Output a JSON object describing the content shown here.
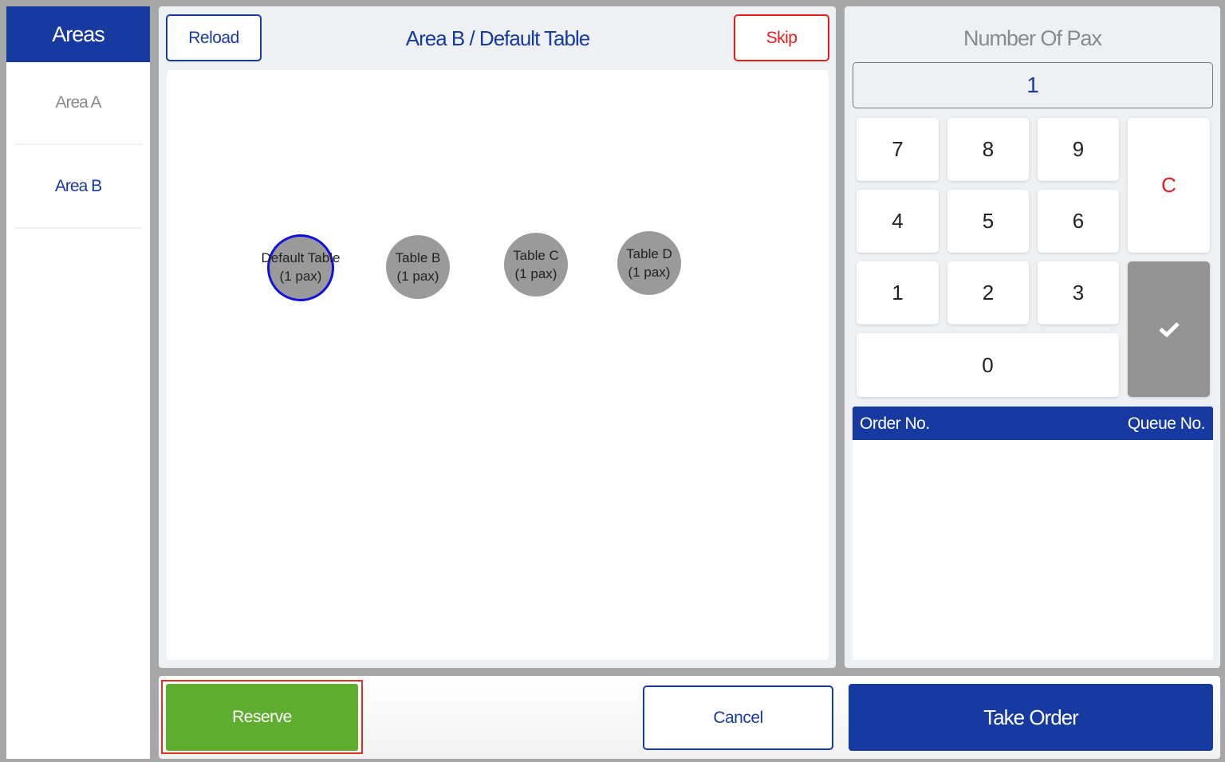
{
  "sidebar": {
    "title": "Areas",
    "items": [
      {
        "label": "Area A",
        "selected": false
      },
      {
        "label": "Area B",
        "selected": true
      }
    ]
  },
  "header": {
    "reload_label": "Reload",
    "title": "Area B / Default Table",
    "skip_label": "Skip"
  },
  "tables": [
    {
      "name": "Default Table",
      "pax": "(1 pax)",
      "selected": true
    },
    {
      "name": "Table B",
      "pax": "(1 pax)",
      "selected": false
    },
    {
      "name": "Table C",
      "pax": "(1 pax)",
      "selected": false
    },
    {
      "name": "Table D",
      "pax": "(1 pax)",
      "selected": false
    }
  ],
  "pax": {
    "title": "Number Of Pax",
    "value": "1",
    "keys": [
      "7",
      "8",
      "9",
      "4",
      "5",
      "6",
      "1",
      "2",
      "3",
      "0"
    ],
    "clear_label": "C",
    "confirm_icon": "check-icon"
  },
  "orders": {
    "col_order": "Order No.",
    "col_queue": "Queue No."
  },
  "footer": {
    "reserve_label": "Reserve",
    "cancel_label": "Cancel",
    "take_order_label": "Take Order"
  },
  "colors": {
    "brand_blue": "#173aa0",
    "reserve_green": "#5fad2f",
    "skip_red": "#e02020",
    "selected_outline": "#1010e0"
  }
}
